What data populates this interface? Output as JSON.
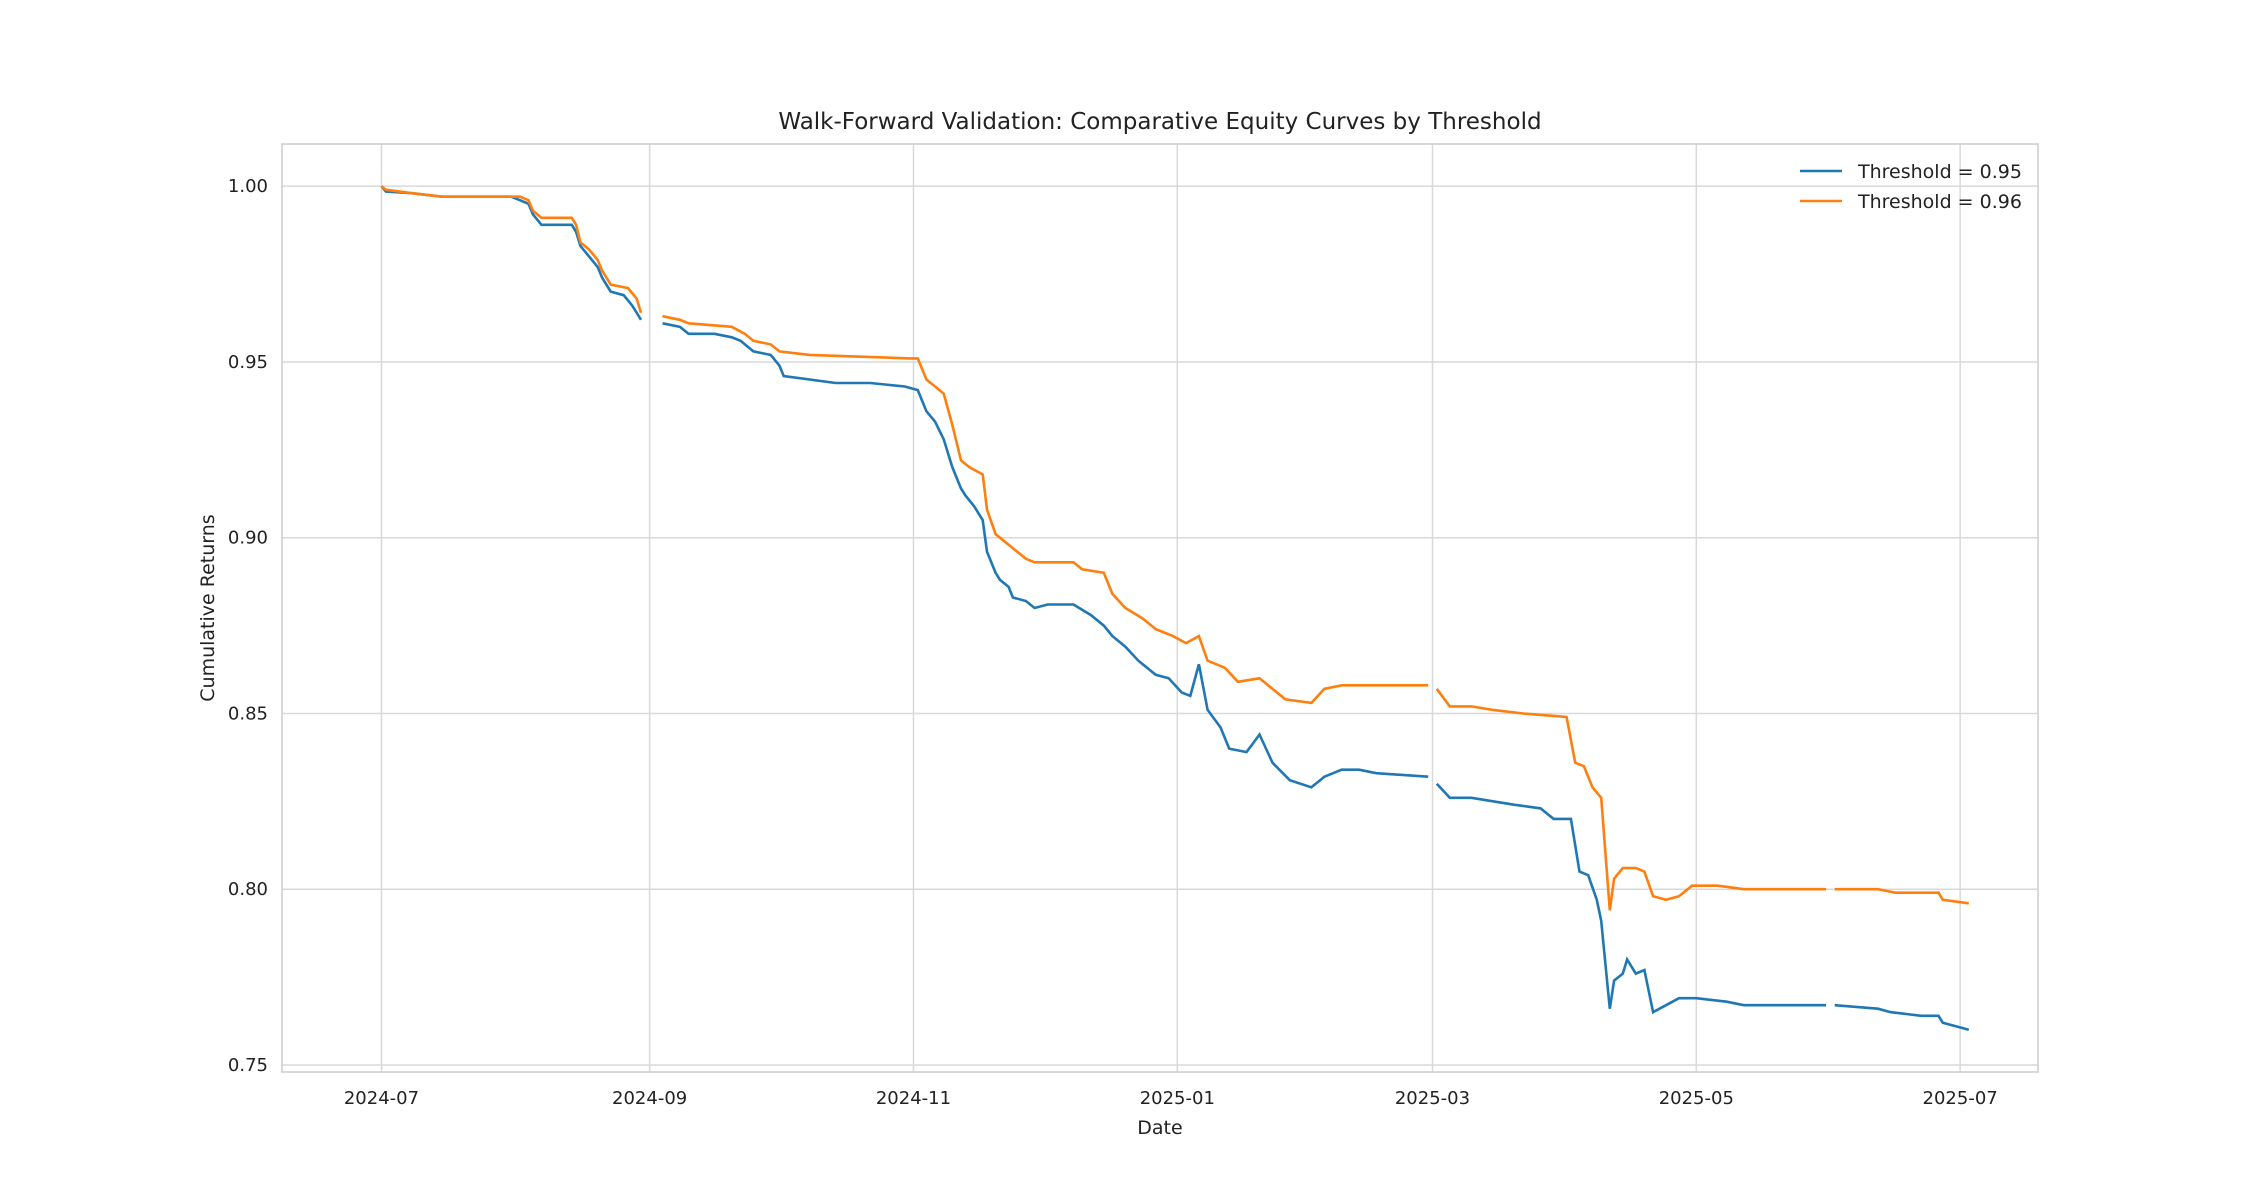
{
  "chart_data": {
    "type": "line",
    "title": "Walk-Forward Validation: Comparative Equity Curves by Threshold",
    "xlabel": "Date",
    "ylabel": "Cumulative Returns",
    "xlim": [
      "2024-06-08",
      "2025-07-19"
    ],
    "ylim": [
      0.748,
      1.012
    ],
    "grid": true,
    "legend_position": "top-right",
    "x_ticks": [
      "2024-07",
      "2024-09",
      "2024-11",
      "2025-01",
      "2025-03",
      "2025-05",
      "2025-07"
    ],
    "x_tick_dates": [
      "2024-07-01",
      "2024-09-01",
      "2024-11-01",
      "2025-01-01",
      "2025-03-01",
      "2025-05-01",
      "2025-07-01"
    ],
    "y_ticks": [
      "0.75",
      "0.80",
      "0.85",
      "0.90",
      "0.95",
      "1.00"
    ],
    "y_tick_values": [
      0.75,
      0.8,
      0.85,
      0.9,
      0.95,
      1.0
    ],
    "series": [
      {
        "name": "Threshold = 0.95",
        "color": "#1f77b4",
        "segments": [
          [
            [
              "2024-07-01",
              1.0
            ],
            [
              "2024-07-02",
              0.9985
            ],
            [
              "2024-07-08",
              0.998
            ],
            [
              "2024-07-15",
              0.997
            ],
            [
              "2024-07-31",
              0.997
            ],
            [
              "2024-08-02",
              0.996
            ],
            [
              "2024-08-04",
              0.995
            ],
            [
              "2024-08-05",
              0.992
            ],
            [
              "2024-08-07",
              0.989
            ],
            [
              "2024-08-10",
              0.989
            ],
            [
              "2024-08-14",
              0.989
            ],
            [
              "2024-08-15",
              0.987
            ],
            [
              "2024-08-16",
              0.983
            ],
            [
              "2024-08-18",
              0.98
            ],
            [
              "2024-08-20",
              0.977
            ],
            [
              "2024-08-21",
              0.974
            ],
            [
              "2024-08-23",
              0.97
            ],
            [
              "2024-08-26",
              0.969
            ],
            [
              "2024-08-28",
              0.966
            ],
            [
              "2024-08-30",
              0.962
            ]
          ],
          [
            [
              "2024-09-04",
              0.961
            ],
            [
              "2024-09-08",
              0.96
            ],
            [
              "2024-09-10",
              0.958
            ],
            [
              "2024-09-16",
              0.958
            ],
            [
              "2024-09-20",
              0.957
            ],
            [
              "2024-09-22",
              0.956
            ],
            [
              "2024-09-25",
              0.953
            ],
            [
              "2024-09-29",
              0.952
            ],
            [
              "2024-10-01",
              0.949
            ],
            [
              "2024-10-02",
              0.946
            ],
            [
              "2024-10-08",
              0.945
            ],
            [
              "2024-10-14",
              0.944
            ],
            [
              "2024-10-22",
              0.944
            ],
            [
              "2024-10-30",
              0.943
            ],
            [
              "2024-11-02",
              0.942
            ],
            [
              "2024-11-04",
              0.936
            ],
            [
              "2024-11-06",
              0.933
            ],
            [
              "2024-11-08",
              0.928
            ],
            [
              "2024-11-10",
              0.92
            ],
            [
              "2024-11-12",
              0.914
            ],
            [
              "2024-11-13",
              0.912
            ],
            [
              "2024-11-15",
              0.909
            ],
            [
              "2024-11-17",
              0.905
            ],
            [
              "2024-11-18",
              0.896
            ],
            [
              "2024-11-20",
              0.89
            ],
            [
              "2024-11-21",
              0.888
            ],
            [
              "2024-11-23",
              0.886
            ],
            [
              "2024-11-24",
              0.883
            ],
            [
              "2024-11-27",
              0.882
            ],
            [
              "2024-11-29",
              0.88
            ],
            [
              "2024-12-02",
              0.881
            ],
            [
              "2024-12-08",
              0.881
            ],
            [
              "2024-12-12",
              0.878
            ],
            [
              "2024-12-15",
              0.875
            ],
            [
              "2024-12-17",
              0.872
            ],
            [
              "2024-12-20",
              0.869
            ],
            [
              "2024-12-23",
              0.865
            ],
            [
              "2024-12-27",
              0.861
            ],
            [
              "2024-12-30",
              0.86
            ],
            [
              "2025-01-02",
              0.856
            ],
            [
              "2025-01-04",
              0.855
            ],
            [
              "2025-01-06",
              0.864
            ],
            [
              "2025-01-08",
              0.851
            ],
            [
              "2025-01-11",
              0.846
            ],
            [
              "2025-01-13",
              0.84
            ],
            [
              "2025-01-17",
              0.839
            ],
            [
              "2025-01-20",
              0.844
            ],
            [
              "2025-01-23",
              0.836
            ],
            [
              "2025-01-27",
              0.831
            ],
            [
              "2025-02-01",
              0.829
            ],
            [
              "2025-02-04",
              0.832
            ],
            [
              "2025-02-08",
              0.834
            ],
            [
              "2025-02-12",
              0.834
            ],
            [
              "2025-02-16",
              0.833
            ],
            [
              "2025-02-28",
              0.832
            ]
          ],
          [
            [
              "2025-03-02",
              0.83
            ],
            [
              "2025-03-05",
              0.826
            ],
            [
              "2025-03-10",
              0.826
            ],
            [
              "2025-03-15",
              0.825
            ],
            [
              "2025-03-20",
              0.824
            ],
            [
              "2025-03-26",
              0.823
            ],
            [
              "2025-03-29",
              0.82
            ],
            [
              "2025-04-02",
              0.82
            ],
            [
              "2025-04-04",
              0.805
            ],
            [
              "2025-04-06",
              0.804
            ],
            [
              "2025-04-08",
              0.797
            ],
            [
              "2025-04-09",
              0.791
            ],
            [
              "2025-04-11",
              0.766
            ],
            [
              "2025-04-12",
              0.774
            ],
            [
              "2025-04-14",
              0.776
            ],
            [
              "2025-04-15",
              0.78
            ],
            [
              "2025-04-17",
              0.776
            ],
            [
              "2025-04-19",
              0.777
            ],
            [
              "2025-04-21",
              0.765
            ],
            [
              "2025-04-24",
              0.767
            ],
            [
              "2025-04-27",
              0.769
            ],
            [
              "2025-05-01",
              0.769
            ],
            [
              "2025-05-08",
              0.768
            ],
            [
              "2025-05-12",
              0.767
            ],
            [
              "2025-05-31",
              0.767
            ]
          ],
          [
            [
              "2025-06-02",
              0.767
            ],
            [
              "2025-06-12",
              0.766
            ],
            [
              "2025-06-15",
              0.765
            ],
            [
              "2025-06-22",
              0.764
            ],
            [
              "2025-06-26",
              0.764
            ],
            [
              "2025-06-27",
              0.762
            ],
            [
              "2025-06-30",
              0.761
            ],
            [
              "2025-07-03",
              0.76
            ]
          ]
        ]
      },
      {
        "name": "Threshold = 0.96",
        "color": "#ff7f0e",
        "segments": [
          [
            [
              "2024-07-01",
              1.0
            ],
            [
              "2024-07-02",
              0.999
            ],
            [
              "2024-07-08",
              0.998
            ],
            [
              "2024-07-15",
              0.997
            ],
            [
              "2024-08-02",
              0.997
            ],
            [
              "2024-08-04",
              0.996
            ],
            [
              "2024-08-05",
              0.993
            ],
            [
              "2024-08-07",
              0.991
            ],
            [
              "2024-08-14",
              0.991
            ],
            [
              "2024-08-15",
              0.989
            ],
            [
              "2024-08-16",
              0.984
            ],
            [
              "2024-08-18",
              0.982
            ],
            [
              "2024-08-20",
              0.979
            ],
            [
              "2024-08-21",
              0.976
            ],
            [
              "2024-08-23",
              0.972
            ],
            [
              "2024-08-27",
              0.971
            ],
            [
              "2024-08-29",
              0.968
            ],
            [
              "2024-08-30",
              0.964
            ]
          ],
          [
            [
              "2024-09-04",
              0.963
            ],
            [
              "2024-09-08",
              0.962
            ],
            [
              "2024-09-10",
              0.961
            ],
            [
              "2024-09-20",
              0.96
            ],
            [
              "2024-09-23",
              0.958
            ],
            [
              "2024-09-25",
              0.956
            ],
            [
              "2024-09-29",
              0.955
            ],
            [
              "2024-10-01",
              0.953
            ],
            [
              "2024-10-08",
              0.952
            ],
            [
              "2024-10-31",
              0.951
            ],
            [
              "2024-11-02",
              0.951
            ],
            [
              "2024-11-04",
              0.945
            ],
            [
              "2024-11-06",
              0.943
            ],
            [
              "2024-11-08",
              0.941
            ],
            [
              "2024-11-10",
              0.932
            ],
            [
              "2024-11-12",
              0.922
            ],
            [
              "2024-11-14",
              0.92
            ],
            [
              "2024-11-17",
              0.918
            ],
            [
              "2024-11-18",
              0.908
            ],
            [
              "2024-11-20",
              0.901
            ],
            [
              "2024-11-22",
              0.899
            ],
            [
              "2024-11-24",
              0.897
            ],
            [
              "2024-11-27",
              0.894
            ],
            [
              "2024-11-29",
              0.893
            ],
            [
              "2024-12-08",
              0.893
            ],
            [
              "2024-12-10",
              0.891
            ],
            [
              "2024-12-15",
              0.89
            ],
            [
              "2024-12-17",
              0.884
            ],
            [
              "2024-12-20",
              0.88
            ],
            [
              "2024-12-24",
              0.877
            ],
            [
              "2024-12-27",
              0.874
            ],
            [
              "2024-12-31",
              0.872
            ],
            [
              "2025-01-03",
              0.87
            ],
            [
              "2025-01-06",
              0.872
            ],
            [
              "2025-01-08",
              0.865
            ],
            [
              "2025-01-12",
              0.863
            ],
            [
              "2025-01-15",
              0.859
            ],
            [
              "2025-01-20",
              0.86
            ],
            [
              "2025-01-22",
              0.858
            ],
            [
              "2025-01-26",
              0.854
            ],
            [
              "2025-02-01",
              0.853
            ],
            [
              "2025-02-04",
              0.857
            ],
            [
              "2025-02-08",
              0.858
            ],
            [
              "2025-02-12",
              0.858
            ],
            [
              "2025-02-28",
              0.858
            ]
          ],
          [
            [
              "2025-03-02",
              0.857
            ],
            [
              "2025-03-05",
              0.852
            ],
            [
              "2025-03-10",
              0.852
            ],
            [
              "2025-03-15",
              0.851
            ],
            [
              "2025-03-22",
              0.85
            ],
            [
              "2025-04-01",
              0.849
            ],
            [
              "2025-04-03",
              0.836
            ],
            [
              "2025-04-05",
              0.835
            ],
            [
              "2025-04-07",
              0.829
            ],
            [
              "2025-04-09",
              0.826
            ],
            [
              "2025-04-11",
              0.794
            ],
            [
              "2025-04-12",
              0.803
            ],
            [
              "2025-04-14",
              0.806
            ],
            [
              "2025-04-17",
              0.806
            ],
            [
              "2025-04-19",
              0.805
            ],
            [
              "2025-04-21",
              0.798
            ],
            [
              "2025-04-24",
              0.797
            ],
            [
              "2025-04-27",
              0.798
            ],
            [
              "2025-04-30",
              0.801
            ],
            [
              "2025-05-06",
              0.801
            ],
            [
              "2025-05-12",
              0.8
            ],
            [
              "2025-05-31",
              0.8
            ]
          ],
          [
            [
              "2025-06-02",
              0.8
            ],
            [
              "2025-06-12",
              0.8
            ],
            [
              "2025-06-16",
              0.799
            ],
            [
              "2025-06-26",
              0.799
            ],
            [
              "2025-06-27",
              0.797
            ],
            [
              "2025-07-03",
              0.796
            ]
          ]
        ]
      }
    ]
  }
}
